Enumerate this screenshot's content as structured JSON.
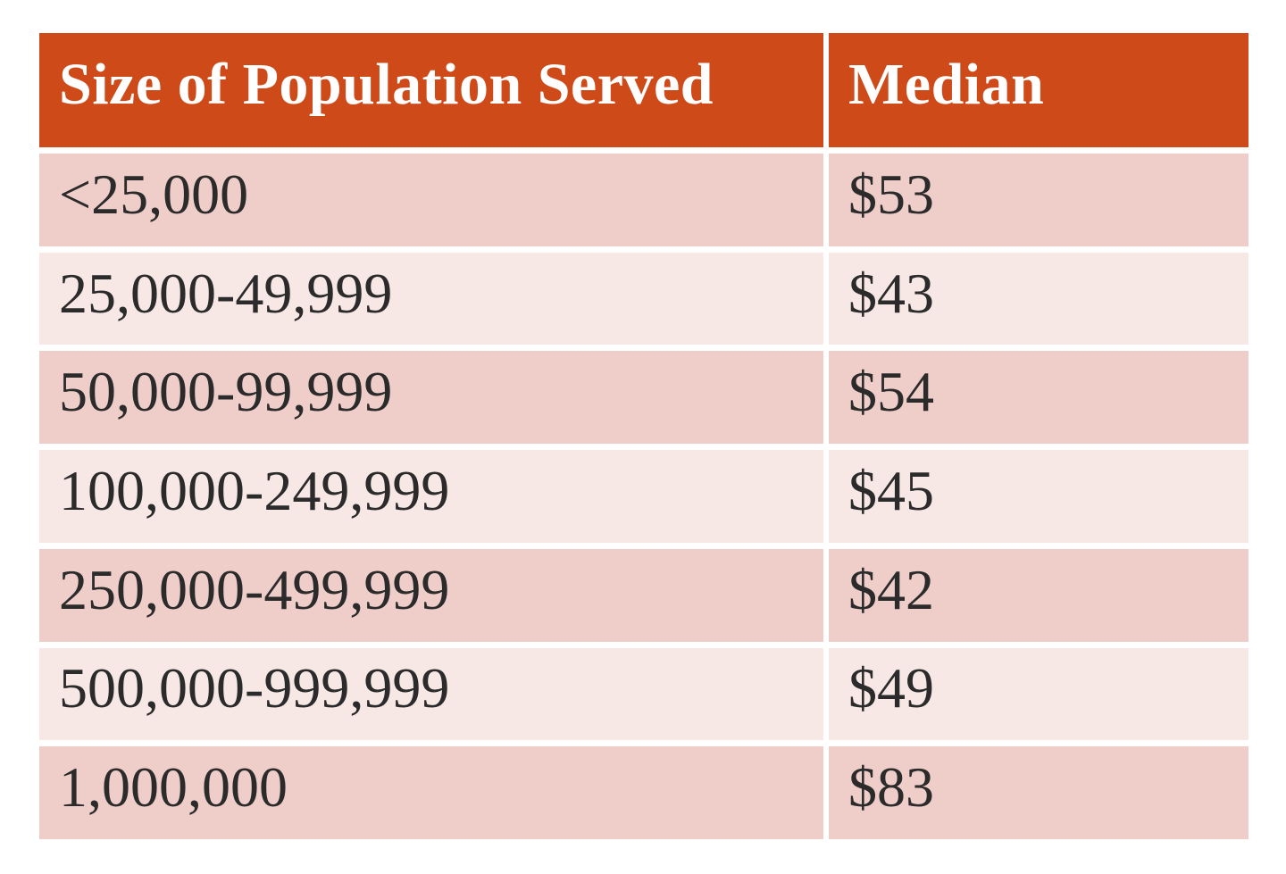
{
  "theme_colors": {
    "page_bg": "#FFFFFF",
    "header_bg": "#CE4A19",
    "header_text": "#FFFFFF",
    "row_dark": "#EFCDC8",
    "row_light": "#F8E8E5",
    "body_text": "#2B2B2B"
  },
  "chart_data": {
    "type": "table",
    "title": "",
    "columns": [
      "Size of Population Served",
      "Median"
    ],
    "rows": [
      {
        "population": "<25,000",
        "median": "$53"
      },
      {
        "population": "25,000-49,999",
        "median": "$43"
      },
      {
        "population": "50,000-99,999",
        "median": "$54"
      },
      {
        "population": "100,000-249,999",
        "median": "$45"
      },
      {
        "population": "250,000-499,999",
        "median": "$42"
      },
      {
        "population": "500,000-999,999",
        "median": "$49"
      },
      {
        "population": "1,000,000",
        "median": "$83"
      }
    ],
    "medians_numeric_usd": [
      53,
      43,
      54,
      45,
      42,
      49,
      83
    ],
    "layout_hints": {
      "striped": true,
      "first_body_row_shade": "dark",
      "header_divider": "white-gap",
      "row_divider": "white-gap"
    }
  }
}
